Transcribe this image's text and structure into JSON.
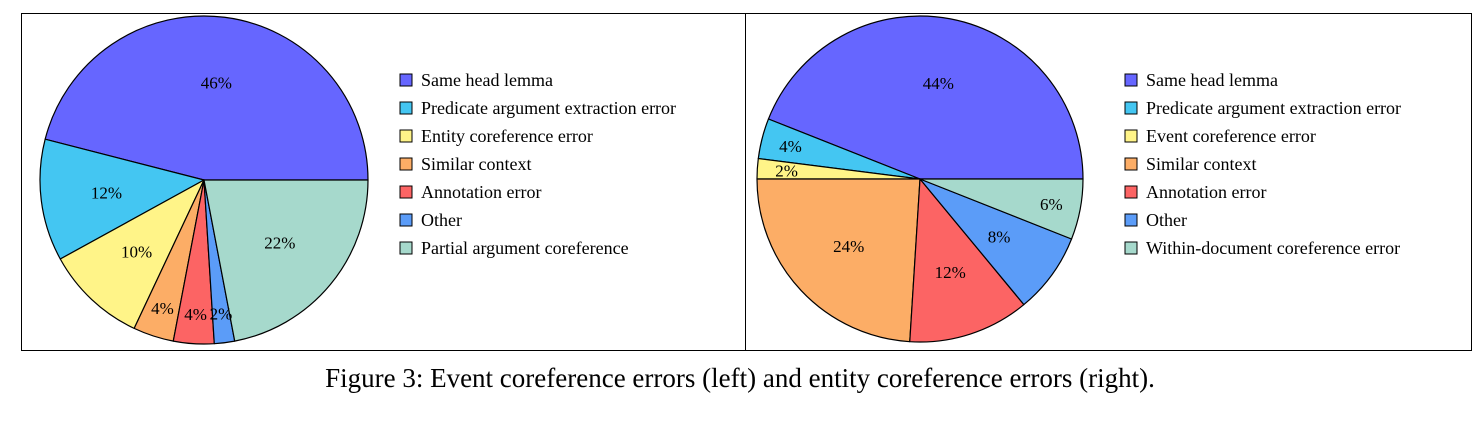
{
  "caption": "Figure 3: Event coreference errors (left) and entity coreference errors (right).",
  "chart_data": [
    {
      "type": "pie",
      "categories": [
        "Same head lemma",
        "Predicate argument extraction error",
        "Entity coreference error",
        "Similar context",
        "Annotation error",
        "Other",
        "Partial argument coreference"
      ],
      "values": [
        46,
        12,
        10,
        4,
        4,
        2,
        22
      ],
      "labels": [
        "46%",
        "12%",
        "10%",
        "4%",
        "4%",
        "2%",
        "22%"
      ],
      "colors": [
        "#6666ff",
        "#44c6f2",
        "#fff488",
        "#fcad66",
        "#fc6464",
        "#5b9cf8",
        "#a6d9cc"
      ],
      "legend_position": "right"
    },
    {
      "type": "pie",
      "categories": [
        "Same head lemma",
        "Predicate argument extraction error",
        "Event coreference error",
        "Similar context",
        "Annotation error",
        "Other",
        "Within-document coreference error"
      ],
      "values": [
        44,
        4,
        2,
        24,
        12,
        8,
        6
      ],
      "labels": [
        "44%",
        "4%",
        "2%",
        "24%",
        "12%",
        "8%",
        "6%"
      ],
      "colors": [
        "#6666ff",
        "#44c6f2",
        "#fff488",
        "#fcad66",
        "#fc6464",
        "#5b9cf8",
        "#a6d9cc"
      ],
      "legend_position": "right"
    }
  ]
}
